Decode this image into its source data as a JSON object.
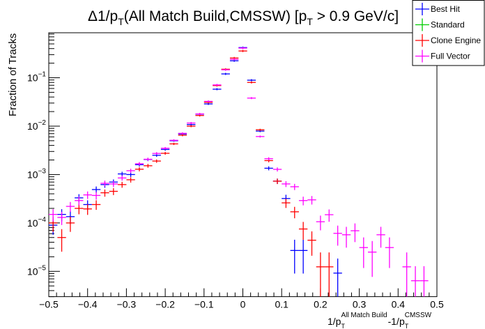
{
  "chart_data": {
    "type": "scatter",
    "title": "Δ1/p_T(All Match Build,CMSSW) [p_T > 0.9 GeV/c]",
    "title_parts": {
      "pre": "Δ1/p",
      "sub1": "T",
      "mid": "(All Match Build,CMSSW) [p",
      "sub2": "T",
      "post": " > 0.9 GeV/c]"
    },
    "xlabel": "1/p_T^{All Match Build}-1/p_T^{CMSSW}",
    "xlabel_parts": {
      "a": "1/p",
      "a_sub": "T",
      "a_sup": "All Match Build",
      "b": "-1/p",
      "b_sub": "T",
      "b_sup": "CMSSW"
    },
    "ylabel": "Fraction of Tracks",
    "xlim": [
      -0.5,
      0.5
    ],
    "ylim": [
      3e-06,
      0.85
    ],
    "yscale": "log",
    "grid": false,
    "legend_position": "top-right",
    "bins": 45,
    "x_ticks": [
      "−0.5",
      "−0.4",
      "−0.3",
      "−0.2",
      "−0.1",
      "0",
      "0.1",
      "0.2",
      "0.3",
      "0.4",
      "0.5"
    ],
    "x_tick_values": [
      -0.5,
      -0.4,
      -0.3,
      -0.2,
      -0.1,
      0,
      0.1,
      0.2,
      0.3,
      0.4,
      0.5
    ],
    "y_ticks": [
      {
        "base": "10",
        "exp": "−1",
        "value": 0.1
      },
      {
        "base": "10",
        "exp": "−2",
        "value": 0.01
      },
      {
        "base": "10",
        "exp": "−3",
        "value": 0.001
      },
      {
        "base": "10",
        "exp": "−4",
        "value": 0.0001
      },
      {
        "base": "10",
        "exp": "−5",
        "value": 1e-05
      }
    ],
    "series": [
      {
        "name": "Best Hit",
        "color": "#0000ff",
        "values": [
          9e-05,
          0.00015,
          0.000135,
          0.00033,
          0.00024,
          0.00049,
          0.00062,
          0.0007,
          0.00103,
          0.001,
          0.0016,
          0.00205,
          0.0025,
          0.0033,
          0.005,
          0.0069,
          0.0108,
          0.0177,
          0.0288,
          0.058,
          0.12,
          0.224,
          0.42,
          0.089,
          0.0079,
          0.00135,
          0.00073,
          0.00032,
          2.7e-05,
          2.7e-05,
          null,
          null,
          null,
          9.2e-06,
          null,
          null,
          null,
          null,
          null,
          null,
          null,
          null,
          null,
          null,
          null
        ]
      },
      {
        "name": "Standard",
        "color": "#00cc00",
        "values": []
      },
      {
        "name": "Clone Engine",
        "color": "#ff0000",
        "values": [
          0.0001,
          5e-05,
          0.0001,
          0.0002,
          0.000195,
          0.00024,
          0.00042,
          0.00045,
          0.00062,
          0.00078,
          0.00129,
          0.00152,
          0.0019,
          0.00275,
          0.0043,
          0.0065,
          0.01,
          0.0166,
          0.031,
          0.069,
          0.15,
          0.256,
          0.357,
          0.08,
          0.0084,
          0.00194,
          0.00073,
          0.00026,
          0.00017,
          7.5e-05,
          4.4e-05,
          1.24e-05,
          1.24e-05,
          null,
          null,
          null,
          null,
          null,
          null,
          null,
          null,
          null,
          null,
          null,
          null
        ]
      },
      {
        "name": "Full Vector",
        "color": "#ff00ff",
        "values": [
          0.00015,
          0.00013,
          0.00022,
          0.00029,
          0.00038,
          0.00037,
          0.00066,
          0.00064,
          0.00085,
          0.0012,
          0.00167,
          0.00207,
          0.00273,
          0.0035,
          0.0051,
          0.0071,
          0.0116,
          0.0179,
          0.0325,
          0.071,
          0.146,
          0.24,
          0.41,
          0.038,
          0.0061,
          0.00212,
          0.00128,
          0.00064,
          0.00056,
          0.00029,
          0.0003,
          0.000106,
          0.000148,
          6.1e-05,
          5.7e-05,
          6.9e-05,
          3.1e-05,
          2.5e-05,
          5.7e-05,
          3.1e-05,
          null,
          1.24e-05,
          6.4e-06,
          6.4e-06,
          null
        ]
      }
    ]
  }
}
